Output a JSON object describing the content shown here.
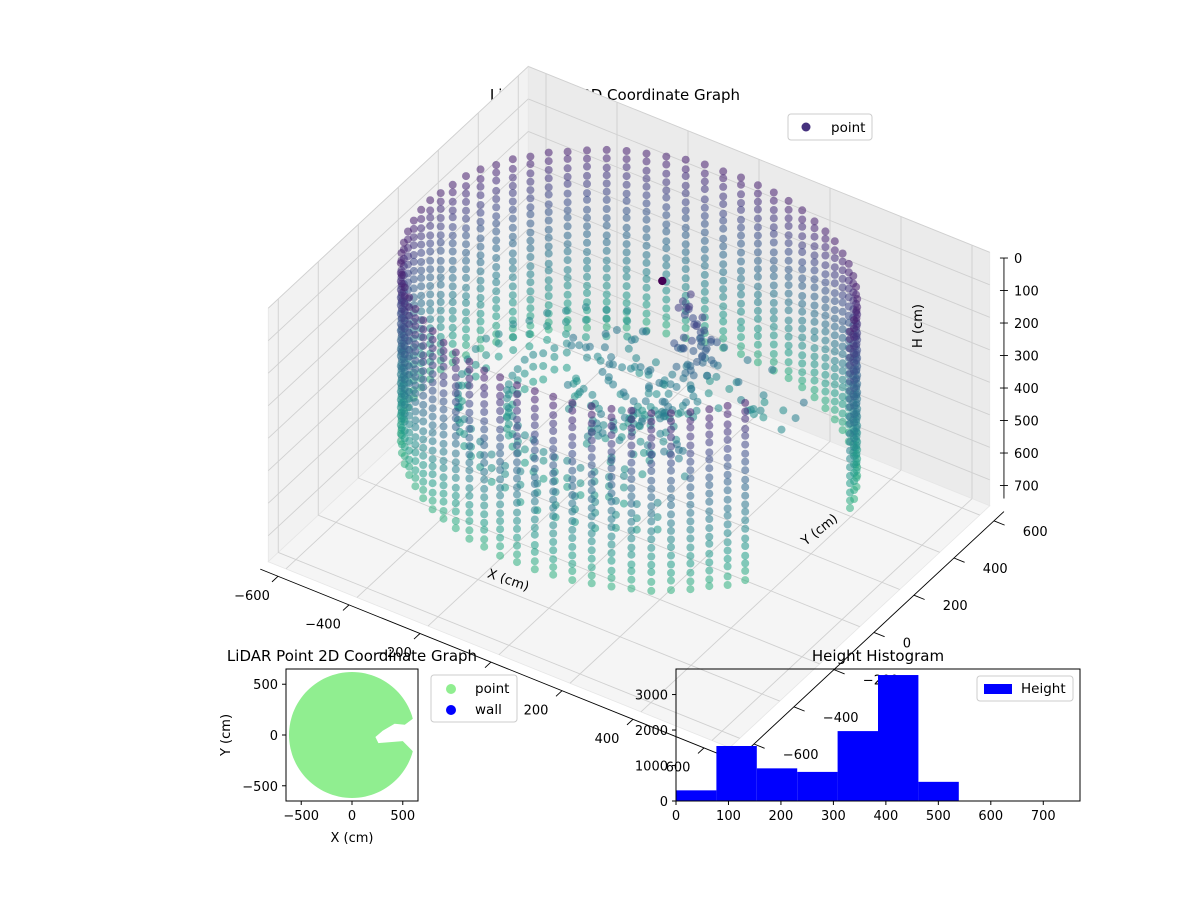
{
  "figure": {
    "bg": "#ffffff"
  },
  "chart_data": [
    {
      "id": "scatter3d",
      "type": "scatter",
      "title": "LiDAR Point 3D Coordinate Graph",
      "xlabel": "X (cm)",
      "ylabel": "Y (cm)",
      "zlabel": "H (cm)",
      "xlim": [
        -650,
        650
      ],
      "ylim": [
        -650,
        650
      ],
      "zlim": [
        780,
        0
      ],
      "xticks": [
        -600,
        -400,
        -200,
        0,
        200,
        400,
        600
      ],
      "yticks": [
        -600,
        -400,
        -200,
        0,
        200,
        400,
        600
      ],
      "zticks": [
        0,
        100,
        200,
        300,
        400,
        500,
        600,
        700
      ],
      "grid": true,
      "colormap": "viridis",
      "legend": {
        "placement": "top-right",
        "entries": [
          {
            "label": "point",
            "color": "#46327e"
          }
        ]
      },
      "walls": {
        "outer_radius": 560,
        "arc_gap_deg": [
          -30,
          12
        ],
        "height_range": [
          0,
          560
        ],
        "inner_rings": [
          {
            "r": 420,
            "start_deg": 120,
            "end_deg": 310
          },
          {
            "r": 300,
            "start_deg": 150,
            "end_deg": 300
          }
        ]
      },
      "floor_cluster": {
        "center": [
          120,
          40
        ],
        "height_range": [
          300,
          450
        ]
      },
      "peak_point": {
        "x": 60,
        "y": 60,
        "h": 10
      }
    },
    {
      "id": "scatter2d",
      "type": "scatter",
      "title": "LiDAR Point 2D Coordinate Graph",
      "xlabel": "X (cm)",
      "ylabel": "Y (cm)",
      "xlim": [
        -650,
        650
      ],
      "ylim": [
        -650,
        650
      ],
      "xticks": [
        -500,
        0,
        500
      ],
      "yticks": [
        500,
        0,
        -500
      ],
      "legend": {
        "placement": "outside-right",
        "entries": [
          {
            "label": "point",
            "color": "#90ee90"
          },
          {
            "label": "wall",
            "color": "#0000ff"
          }
        ]
      },
      "region": {
        "radius": 620,
        "notch_angles_deg": [
          -15,
          15
        ]
      }
    },
    {
      "id": "histogram",
      "type": "bar",
      "title": "Height Histogram",
      "series": [
        {
          "name": "Height",
          "color": "#0000ff",
          "bins": [
            0,
            77,
            154,
            231,
            308,
            385,
            462,
            539,
            616,
            693,
            770
          ],
          "values": [
            300,
            1550,
            920,
            820,
            1970,
            3550,
            540,
            0,
            0,
            0
          ]
        }
      ],
      "xlim": [
        0,
        770
      ],
      "ylim": [
        0,
        3720
      ],
      "xticks": [
        0,
        100,
        200,
        300,
        400,
        500,
        600,
        700
      ],
      "yticks": [
        0,
        1000,
        2000,
        3000
      ],
      "legend": {
        "placement": "top-right",
        "entries": [
          {
            "label": "Height",
            "color": "#0000ff"
          }
        ]
      }
    }
  ]
}
